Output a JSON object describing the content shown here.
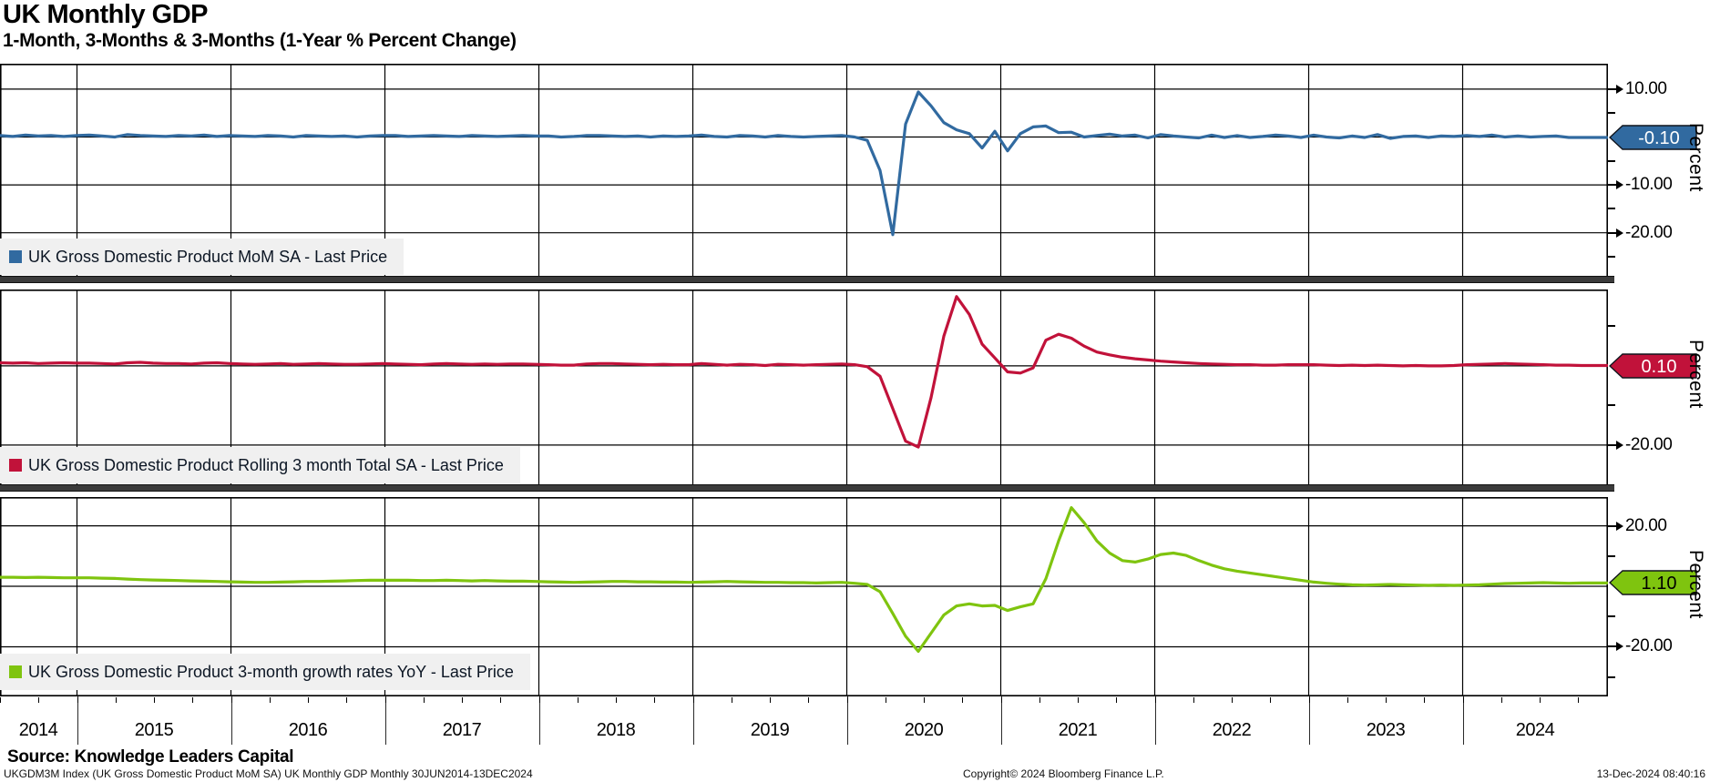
{
  "header": {
    "title": "UK Monthly GDP",
    "subtitle": "1-Month, 3-Months & 3-Months (1-Year % Percent Change)"
  },
  "source_line": "Source: Knowledge Leaders Capital",
  "footer": {
    "left": "UKGDM3M Index (UK Gross Domestic Product MoM SA) UK Monthly GDP  Monthly 30JUN2014-13DEC2024",
    "center": "Copyright© 2024 Bloomberg Finance L.P.",
    "right": "13-Dec-2024 08:40:16"
  },
  "chart_data": {
    "type": "line",
    "title": "UK Monthly GDP",
    "subtitle": "1-Month, 3-Months & 3-Months (1-Year % Percent Change)",
    "x_start": 2014.5,
    "x_end": 2024.95,
    "frequency": "monthly",
    "grid": "on",
    "x_axis": {
      "labels": [
        "2014",
        "2015",
        "2016",
        "2017",
        "2018",
        "2019",
        "2020",
        "2021",
        "2022",
        "2023",
        "2024"
      ],
      "gridline_years": [
        2015,
        2016,
        2017,
        2018,
        2019,
        2020,
        2021,
        2022,
        2023,
        2024
      ]
    },
    "panels": [
      {
        "id": "mom",
        "legend": "UK Gross Domestic Product MoM SA - Last Price",
        "axis_label": "Percent",
        "color": "#316aa0",
        "tag_text_color": "#ffffff",
        "ylim": [
          -29.0,
          15.3
        ],
        "gridlines": [
          10,
          0,
          -10,
          -20
        ],
        "labeled_ticks": [
          {
            "value": 10,
            "label": "10.00"
          },
          {
            "value": -10,
            "label": "-10.00"
          },
          {
            "value": -20,
            "label": "-20.00"
          }
        ],
        "minor_ticks": [
          5,
          -5,
          -15,
          -25
        ],
        "last_price": {
          "value": -0.1,
          "label": "-0.10"
        },
        "values": [
          0.3,
          0.1,
          0.4,
          0.2,
          0.3,
          0.1,
          0.3,
          0.4,
          0.2,
          0.0,
          0.5,
          0.3,
          0.2,
          0.1,
          0.3,
          0.2,
          0.4,
          0.1,
          0.3,
          0.2,
          0.1,
          0.3,
          0.2,
          0.0,
          0.3,
          0.2,
          0.1,
          0.2,
          0.0,
          0.2,
          0.3,
          0.3,
          0.1,
          0.2,
          0.3,
          0.2,
          0.1,
          0.3,
          0.2,
          0.1,
          0.2,
          0.3,
          0.2,
          0.2,
          0.0,
          0.1,
          0.3,
          0.3,
          0.2,
          0.1,
          0.2,
          0.0,
          0.2,
          0.1,
          0.2,
          0.4,
          0.1,
          0.0,
          0.3,
          0.2,
          0.0,
          0.3,
          0.1,
          0.0,
          0.1,
          0.2,
          0.3,
          0.0,
          -0.7,
          -7.0,
          -20.4,
          2.7,
          9.4,
          6.5,
          3.0,
          1.5,
          0.7,
          -2.3,
          1.2,
          -2.9,
          0.7,
          2.1,
          2.3,
          0.9,
          1.0,
          0.0,
          0.3,
          0.6,
          0.2,
          0.4,
          -0.2,
          0.5,
          0.2,
          0.0,
          -0.2,
          0.4,
          -0.1,
          0.3,
          -0.1,
          0.1,
          0.4,
          0.2,
          -0.1,
          0.4,
          0.0,
          -0.2,
          0.2,
          -0.1,
          0.5,
          -0.3,
          0.1,
          0.2,
          -0.1,
          0.2,
          0.1,
          0.3,
          0.1,
          0.4,
          0.0,
          0.2,
          0.0,
          0.1,
          0.2,
          -0.1,
          -0.1,
          -0.1,
          -0.1
        ]
      },
      {
        "id": "rolling3m",
        "legend": "UK Gross Domestic Product Rolling 3 month Total SA - Last Price",
        "axis_label": "Percent",
        "color": "#c1123a",
        "tag_text_color": "#ffffff",
        "ylim": [
          -29.9,
          19.3
        ],
        "gridlines": [
          0,
          -20
        ],
        "labeled_ticks": [
          {
            "value": -20,
            "label": "-20.00"
          }
        ],
        "minor_ticks": [
          10,
          -10
        ],
        "last_price": {
          "value": 0.1,
          "label": "0.10"
        },
        "values": [
          0.8,
          0.7,
          0.8,
          0.6,
          0.7,
          0.8,
          0.7,
          0.7,
          0.6,
          0.5,
          0.8,
          0.9,
          0.7,
          0.6,
          0.6,
          0.5,
          0.7,
          0.8,
          0.6,
          0.5,
          0.4,
          0.5,
          0.6,
          0.4,
          0.5,
          0.6,
          0.5,
          0.4,
          0.4,
          0.5,
          0.6,
          0.5,
          0.4,
          0.3,
          0.5,
          0.6,
          0.5,
          0.4,
          0.5,
          0.4,
          0.5,
          0.5,
          0.4,
          0.3,
          0.2,
          0.2,
          0.5,
          0.6,
          0.6,
          0.5,
          0.4,
          0.3,
          0.4,
          0.3,
          0.3,
          0.6,
          0.4,
          0.2,
          0.4,
          0.3,
          0.1,
          0.4,
          0.3,
          0.2,
          0.3,
          0.4,
          0.5,
          0.3,
          -0.2,
          -2.6,
          -10.8,
          -19.0,
          -20.5,
          -8.0,
          7.5,
          17.5,
          13.0,
          5.5,
          2.0,
          -1.5,
          -1.8,
          -0.5,
          6.5,
          8.0,
          7.0,
          5.0,
          3.5,
          2.8,
          2.2,
          1.8,
          1.5,
          1.2,
          1.0,
          0.8,
          0.6,
          0.5,
          0.4,
          0.3,
          0.3,
          0.2,
          0.2,
          0.3,
          0.3,
          0.3,
          0.2,
          0.1,
          0.2,
          0.1,
          0.2,
          0.1,
          0.0,
          0.1,
          0.0,
          0.0,
          0.1,
          0.3,
          0.4,
          0.5,
          0.6,
          0.5,
          0.4,
          0.3,
          0.2,
          0.2,
          0.1,
          0.1,
          0.1
        ]
      },
      {
        "id": "yoy3m",
        "legend": "UK Gross Domestic Product 3-month growth rates YoY - Last Price",
        "axis_label": "Percent",
        "color": "#7fc40f",
        "tag_text_color": "#000000",
        "ylim": [
          -36.4,
          29.5
        ],
        "gridlines": [
          20,
          0,
          -20
        ],
        "labeled_ticks": [
          {
            "value": 20,
            "label": "20.00"
          },
          {
            "value": -20,
            "label": "-20.00"
          }
        ],
        "minor_ticks": [
          10,
          -10,
          -30
        ],
        "last_price": {
          "value": 1.1,
          "label": "1.10"
        },
        "values": [
          3.0,
          3.0,
          2.9,
          3.0,
          2.9,
          2.8,
          2.8,
          2.8,
          2.7,
          2.6,
          2.4,
          2.2,
          2.1,
          2.0,
          1.9,
          1.8,
          1.7,
          1.6,
          1.5,
          1.4,
          1.3,
          1.3,
          1.4,
          1.5,
          1.6,
          1.6,
          1.7,
          1.8,
          1.9,
          2.0,
          2.0,
          2.0,
          2.0,
          1.9,
          1.9,
          2.0,
          1.9,
          1.8,
          1.9,
          1.8,
          1.7,
          1.7,
          1.6,
          1.5,
          1.4,
          1.3,
          1.4,
          1.5,
          1.6,
          1.6,
          1.5,
          1.5,
          1.4,
          1.4,
          1.3,
          1.4,
          1.5,
          1.6,
          1.5,
          1.4,
          1.3,
          1.3,
          1.2,
          1.2,
          1.1,
          1.2,
          1.3,
          1.0,
          0.6,
          -1.8,
          -9.0,
          -16.5,
          -21.5,
          -15.5,
          -9.5,
          -6.5,
          -5.8,
          -6.5,
          -6.3,
          -8.0,
          -6.8,
          -5.8,
          2.5,
          15.0,
          26.0,
          21.0,
          15.0,
          11.0,
          8.5,
          8.0,
          9.0,
          10.5,
          11.0,
          10.2,
          8.5,
          7.0,
          5.8,
          5.0,
          4.4,
          3.8,
          3.2,
          2.6,
          2.0,
          1.4,
          1.0,
          0.7,
          0.5,
          0.4,
          0.5,
          0.6,
          0.5,
          0.4,
          0.3,
          0.4,
          0.3,
          0.4,
          0.5,
          0.7,
          0.9,
          1.0,
          1.1,
          1.2,
          1.1,
          1.0,
          1.1,
          1.1,
          1.1
        ]
      }
    ]
  }
}
